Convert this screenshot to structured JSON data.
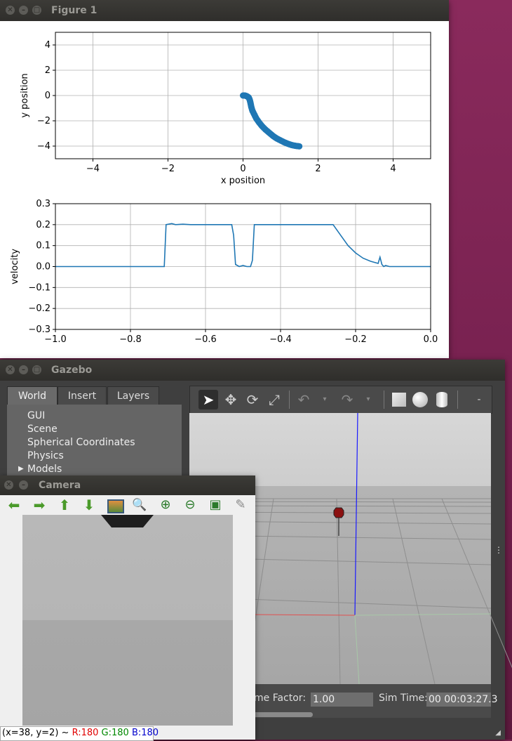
{
  "figure": {
    "title": "Figure 1",
    "chart_data": [
      {
        "type": "scatter",
        "xlabel": "x position",
        "ylabel": "y position",
        "xlim": [
          -5,
          5
        ],
        "ylim": [
          -5,
          5
        ],
        "xticks": [
          -4,
          -2,
          0,
          2,
          4
        ],
        "yticks": [
          4,
          2,
          0,
          -2,
          -4
        ],
        "grid": true,
        "color": "#1f77b4",
        "x": [
          0.0,
          0.05,
          0.1,
          0.15,
          0.18,
          0.2,
          0.22,
          0.25,
          0.3,
          0.35,
          0.42,
          0.5,
          0.6,
          0.7,
          0.8,
          0.9,
          1.0,
          1.1,
          1.2,
          1.3,
          1.4,
          1.5
        ],
        "y": [
          0.0,
          0.0,
          -0.05,
          -0.15,
          -0.35,
          -0.6,
          -0.9,
          -1.2,
          -1.5,
          -1.8,
          -2.1,
          -2.4,
          -2.7,
          -2.95,
          -3.2,
          -3.4,
          -3.55,
          -3.7,
          -3.82,
          -3.92,
          -3.98,
          -4.02
        ]
      },
      {
        "type": "line",
        "xlabel": "",
        "ylabel": "velocity",
        "xlim": [
          -1.0,
          0.0
        ],
        "ylim": [
          -0.3,
          0.3
        ],
        "xticks": [
          "−1.0",
          "−0.8",
          "−0.6",
          "−0.4",
          "−0.2",
          "0.0"
        ],
        "yticks": [
          "0.3",
          "0.2",
          "0.1",
          "0.0",
          "−0.1",
          "−0.2",
          "−0.3"
        ],
        "grid": true,
        "color": "#1f77b4",
        "x": [
          -1.0,
          -0.71,
          -0.705,
          -0.69,
          -0.68,
          -0.66,
          -0.64,
          -0.62,
          -0.6,
          -0.55,
          -0.53,
          -0.525,
          -0.52,
          -0.51,
          -0.5,
          -0.49,
          -0.48,
          -0.475,
          -0.47,
          -0.465,
          -0.45,
          -0.4,
          -0.35,
          -0.3,
          -0.26,
          -0.24,
          -0.22,
          -0.2,
          -0.18,
          -0.16,
          -0.14,
          -0.135,
          -0.13,
          -0.125,
          -0.12,
          -0.11,
          -0.1,
          -0.05,
          0.0
        ],
        "y": [
          0.0,
          0.0,
          0.2,
          0.205,
          0.2,
          0.202,
          0.2,
          0.2,
          0.2,
          0.2,
          0.2,
          0.15,
          0.01,
          0.0,
          0.005,
          0.0,
          0.0,
          0.03,
          0.2,
          0.2,
          0.2,
          0.2,
          0.2,
          0.2,
          0.2,
          0.15,
          0.1,
          0.065,
          0.04,
          0.025,
          0.015,
          0.045,
          0.01,
          0.0,
          0.005,
          0.0,
          0.0,
          0.0,
          0.0
        ]
      }
    ]
  },
  "gazebo": {
    "title": "Gazebo",
    "tabs": [
      "World",
      "Insert",
      "Layers"
    ],
    "tree": [
      "GUI",
      "Scene",
      "Spherical Coordinates",
      "Physics",
      "Models"
    ],
    "toolbar_menu": "-",
    "status": {
      "time_factor_label": "Time Factor:",
      "time_factor_value": "1.00",
      "sim_time_label": "Sim Time:",
      "sim_time_value": "00 00:03:27.3"
    }
  },
  "camera": {
    "title": "Camera",
    "status": {
      "coords": "(x=38, y=2) ~",
      "r": "R:180",
      "g": "G:180",
      "b": "B:180"
    },
    "colors": {
      "r": "#e00000",
      "g": "#008800",
      "b": "#0000cc"
    }
  }
}
